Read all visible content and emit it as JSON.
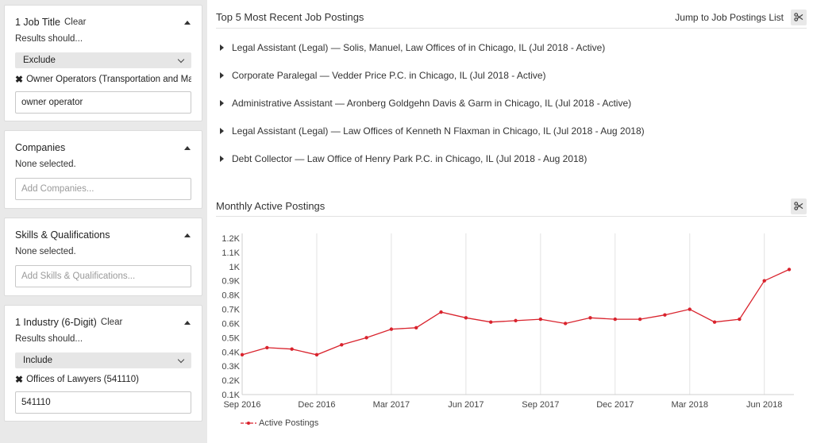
{
  "sidebar": {
    "job_title": {
      "title": "1 Job Title",
      "clear": "Clear",
      "results_label": "Results should...",
      "mode": "Exclude",
      "selected": "Owner Operators (Transportation and Mat...",
      "input_value": "owner operator"
    },
    "companies": {
      "title": "Companies",
      "status": "None selected.",
      "placeholder": "Add Companies..."
    },
    "skills": {
      "title": "Skills & Qualifications",
      "status": "None selected.",
      "placeholder": "Add Skills & Qualifications..."
    },
    "industry": {
      "title": "1 Industry (6-Digit)",
      "clear": "Clear",
      "results_label": "Results should...",
      "mode": "Include",
      "selected": "Offices of Lawyers (541110)",
      "input_value": "541110"
    }
  },
  "postings": {
    "title": "Top 5 Most Recent Job Postings",
    "jump_link": "Jump to Job Postings List",
    "items": [
      "Legal Assistant (Legal) — Solis, Manuel, Law Offices of in Chicago, IL (Jul 2018 - Active)",
      "Corporate Paralegal — Vedder Price P.C. in Chicago, IL (Jul 2018 - Active)",
      "Administrative Assistant — Aronberg Goldgehn Davis & Garm in Chicago, IL (Jul 2018 - Active)",
      "Legal Assistant (Legal) — Law Offices of Kenneth N Flaxman in Chicago, IL (Jul 2018 - Aug 2018)",
      "Debt Collector — Law Office of Henry Park P.C. in Chicago, IL (Jul 2018 - Aug 2018)"
    ]
  },
  "chart_section": {
    "title": "Monthly Active Postings"
  },
  "icons": {
    "scissors": "scissors-icon",
    "section_caret": "caret-up-icon",
    "remove": "x-icon",
    "expand": "caret-right-icon"
  },
  "colors": {
    "series": "#d9232d"
  },
  "chart_data": {
    "type": "line",
    "title": "Monthly Active Postings",
    "xlabel": "",
    "ylabel": "",
    "ylim": [
      0.1,
      1.2
    ],
    "y_ticks": [
      "0.1K",
      "0.2K",
      "0.3K",
      "0.4K",
      "0.5K",
      "0.6K",
      "0.7K",
      "0.8K",
      "0.9K",
      "1K",
      "1.1K",
      "1.2K"
    ],
    "x_ticks": [
      {
        "label": "Sep 2016",
        "index": 0
      },
      {
        "label": "Dec 2016",
        "index": 3
      },
      {
        "label": "Mar 2017",
        "index": 6
      },
      {
        "label": "Jun 2017",
        "index": 9
      },
      {
        "label": "Sep 2017",
        "index": 12
      },
      {
        "label": "Dec 2017",
        "index": 15
      },
      {
        "label": "Mar 2018",
        "index": 18
      },
      {
        "label": "Jun 2018",
        "index": 21
      }
    ],
    "grid": "vertical",
    "legend": "bottom-left",
    "series": [
      {
        "name": "Active Postings",
        "values": [
          0.38,
          0.43,
          0.42,
          0.38,
          0.45,
          0.5,
          0.56,
          0.57,
          0.68,
          0.64,
          0.61,
          0.62,
          0.63,
          0.6,
          0.64,
          0.63,
          0.63,
          0.66,
          0.7,
          0.61,
          0.63,
          0.9,
          0.98
        ]
      }
    ]
  }
}
